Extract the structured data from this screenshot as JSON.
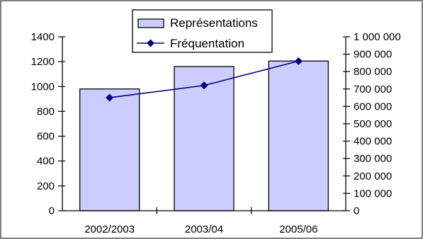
{
  "chart_data": {
    "type": "bar",
    "categories": [
      "2002/2003",
      "2003/04",
      "2005/06"
    ],
    "series": [
      {
        "name": "Représentations",
        "type": "bar",
        "axis": "left",
        "values": [
          980,
          1160,
          1205
        ],
        "color": "#ccccff"
      },
      {
        "name": "Fréquentation",
        "type": "line",
        "axis": "right",
        "values": [
          650000,
          720000,
          860000
        ],
        "color": "#000080"
      }
    ],
    "y_left": {
      "lim": [
        0,
        1400
      ],
      "ticks": [
        "0",
        "200",
        "400",
        "600",
        "800",
        "1000",
        "1200",
        "1400"
      ]
    },
    "y_right": {
      "lim": [
        0,
        1000000
      ],
      "ticks": [
        "0",
        "100 000",
        "200 000",
        "300 000",
        "400 000",
        "500 000",
        "600 000",
        "700 000",
        "800 000",
        "900 000",
        "1 000 000"
      ]
    },
    "grid": false,
    "legend_position": "top-center"
  },
  "colors": {
    "bar_fill": "#ccccff",
    "bar_stroke": "#000000",
    "line": "#000080",
    "axis": "#000000",
    "frame": "#000000",
    "background": "#ffffff"
  }
}
